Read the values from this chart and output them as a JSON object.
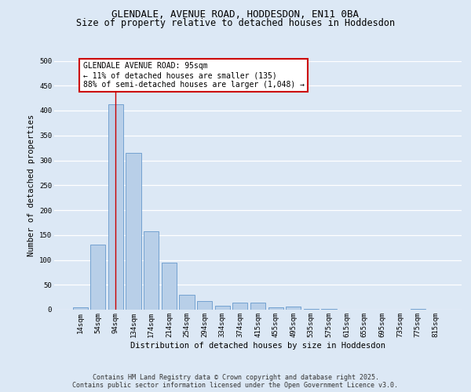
{
  "title_line1": "GLENDALE, AVENUE ROAD, HODDESDON, EN11 0BA",
  "title_line2": "Size of property relative to detached houses in Hoddesdon",
  "xlabel": "Distribution of detached houses by size in Hoddesdon",
  "ylabel": "Number of detached properties",
  "categories": [
    "14sqm",
    "54sqm",
    "94sqm",
    "134sqm",
    "174sqm",
    "214sqm",
    "254sqm",
    "294sqm",
    "334sqm",
    "374sqm",
    "415sqm",
    "455sqm",
    "495sqm",
    "535sqm",
    "575sqm",
    "615sqm",
    "655sqm",
    "695sqm",
    "735sqm",
    "775sqm",
    "815sqm"
  ],
  "values": [
    5,
    130,
    412,
    315,
    157,
    95,
    30,
    18,
    8,
    14,
    14,
    4,
    6,
    1,
    1,
    0,
    0,
    0,
    0,
    1,
    0
  ],
  "bar_color": "#b8cfe8",
  "bar_edge_color": "#6699cc",
  "vline_x_index": 2,
  "vline_color": "#cc0000",
  "annotation_text": "GLENDALE AVENUE ROAD: 95sqm\n← 11% of detached houses are smaller (135)\n88% of semi-detached houses are larger (1,048) →",
  "annotation_box_facecolor": "#ffffff",
  "annotation_box_edgecolor": "#cc0000",
  "ylim": [
    0,
    500
  ],
  "yticks": [
    0,
    50,
    100,
    150,
    200,
    250,
    300,
    350,
    400,
    450,
    500
  ],
  "bg_color": "#dce8f5",
  "plot_bg_color": "#dce8f5",
  "grid_color": "#ffffff",
  "footer_line1": "Contains HM Land Registry data © Crown copyright and database right 2025.",
  "footer_line2": "Contains public sector information licensed under the Open Government Licence v3.0.",
  "title_fontsize": 9,
  "subtitle_fontsize": 8.5,
  "axis_label_fontsize": 7.5,
  "tick_fontsize": 6.5,
  "annotation_fontsize": 7,
  "footer_fontsize": 6
}
